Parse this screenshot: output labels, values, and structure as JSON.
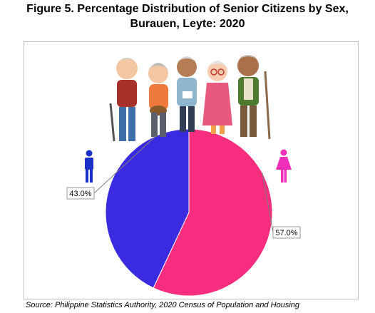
{
  "title_line1": "Figure 5. Percentage Distribution of Senior Citizens by Sex,",
  "title_line2": "Burauen, Leyte: 2020",
  "source": "Source: Philippine Statistics Authority, 2020 Census of Population and Housing",
  "chart_data": {
    "type": "pie",
    "slices": [
      {
        "value": 43.0,
        "label": "43.0%",
        "color": "#3a2be0",
        "icon": "male-icon"
      },
      {
        "value": 57.0,
        "label": "57.0%",
        "color": "#f72d7f",
        "icon": "female-icon"
      }
    ]
  },
  "colors": {
    "male": "#3a2be0",
    "female": "#f72d7f",
    "male_icon": "#1b2fc9",
    "female_icon": "#f02fb8"
  },
  "illustration": {
    "icon": "senior-citizens-group-illustration"
  }
}
